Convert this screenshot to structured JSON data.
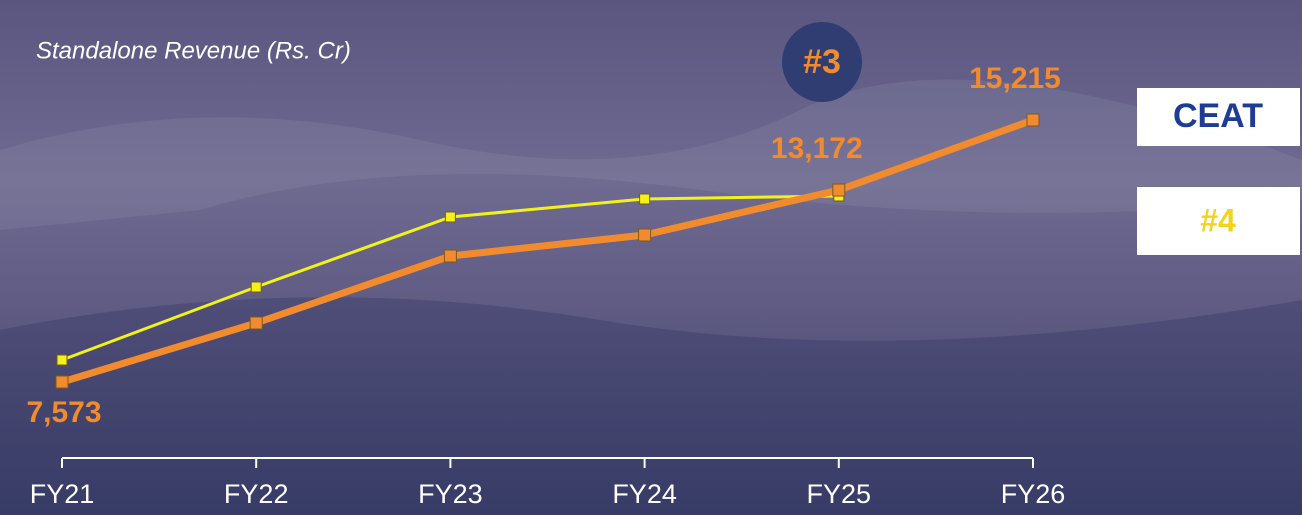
{
  "chart_data": {
    "type": "line",
    "subtitle": "Standalone Revenue (Rs. Cr)",
    "categories": [
      "FY21",
      "FY22",
      "FY23",
      "FY24",
      "FY25",
      "FY26"
    ],
    "series": [
      {
        "name": "CEAT",
        "color": "#f28a2e",
        "values": [
          7573,
          9294,
          11248,
          11861,
          13172,
          15215
        ],
        "value_labels": [
          "7,573",
          null,
          null,
          null,
          "13,172",
          "15,215"
        ]
      },
      {
        "name": "#4",
        "color": "#f2f21a",
        "values": [
          8215,
          10344,
          12386,
          12911,
          12999,
          null
        ]
      }
    ],
    "annotations": [
      "#3"
    ]
  }
}
